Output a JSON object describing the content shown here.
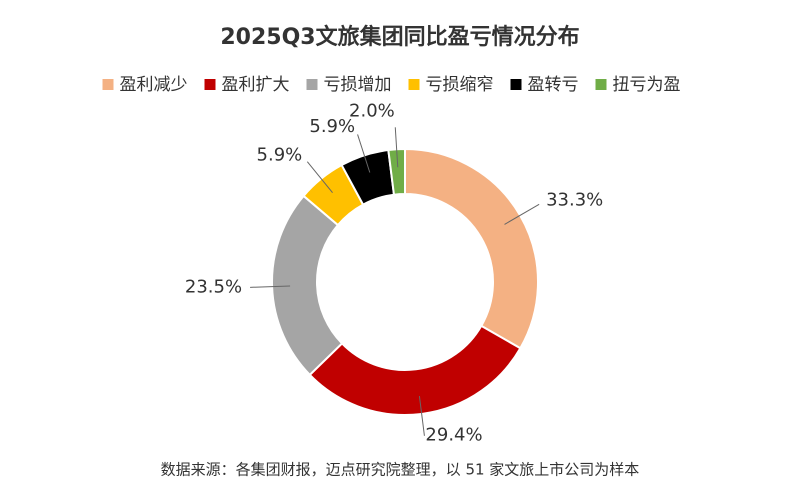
{
  "chart_data": {
    "type": "donut",
    "title": "2025Q3文旅集团同比盈亏情况分布",
    "categories": [
      "盈利减少",
      "盈利扩大",
      "亏损增加",
      "亏损缩窄",
      "盈转亏",
      "扭亏为盈"
    ],
    "values": [
      33.3,
      29.4,
      23.5,
      5.9,
      5.9,
      2.0
    ],
    "value_labels": [
      "33.3%",
      "29.4%",
      "23.5%",
      "5.9%",
      "5.9%",
      "2.0%"
    ],
    "colors": [
      "#f4b183",
      "#c00000",
      "#a5a5a5",
      "#ffc000",
      "#000000",
      "#70ad47"
    ],
    "legend": "top",
    "note": "数据来源：各集团财报，迈点研究院整理，以 51 家文旅上市公司为样本"
  }
}
